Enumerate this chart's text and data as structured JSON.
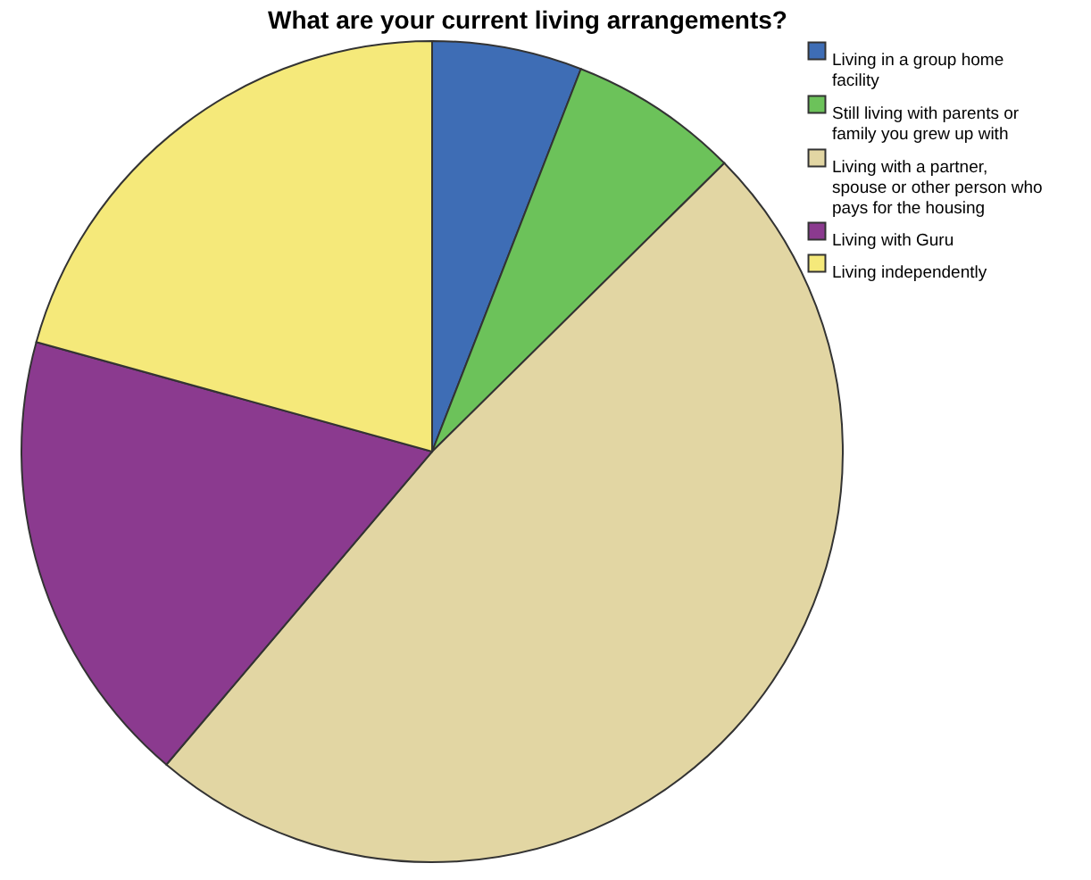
{
  "chart_data": {
    "type": "pie",
    "title": "What are your current living arrangements?",
    "categories": [
      "Living in a group home facility",
      "Still living with parents or family you grew up with",
      "Living with a partner, spouse or other person who pays for the housing",
      "Living with Guru",
      "Living independently"
    ],
    "values": [
      5.9,
      6.7,
      48.6,
      18.1,
      20.7
    ],
    "colors": [
      "#3e6db5",
      "#6cc25a",
      "#e2d6a3",
      "#8b3a8f",
      "#f5e97a"
    ],
    "legend": "top right"
  }
}
